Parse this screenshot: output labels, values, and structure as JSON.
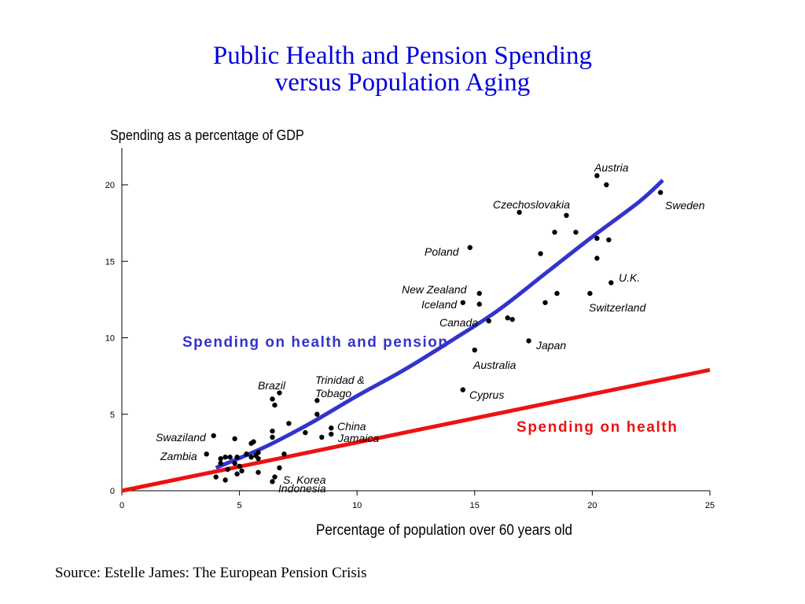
{
  "title_line1": "Public Health and Pension Spending",
  "title_line2": "versus Population Aging",
  "source": "Source: Estelle James: The European Pension Crisis",
  "chart_data": {
    "type": "scatter",
    "title": "Public Health and Pension Spending versus Population Aging",
    "xlabel": "Percentage of population over 60 years old",
    "ylabel": "Spending as a percentage of GDP",
    "xlim": [
      0,
      25
    ],
    "ylim": [
      0,
      21
    ],
    "xticks": [
      0,
      5,
      10,
      15,
      20,
      25
    ],
    "yticks": [
      0,
      5,
      10,
      15,
      20
    ],
    "grid": false,
    "points": [
      {
        "x": 20.2,
        "y": 20.6,
        "label": "Austria"
      },
      {
        "x": 20.6,
        "y": 20.0
      },
      {
        "x": 22.9,
        "y": 19.5,
        "label": "Sweden"
      },
      {
        "x": 16.9,
        "y": 18.2,
        "label": "Czechoslovakia"
      },
      {
        "x": 18.9,
        "y": 18.0
      },
      {
        "x": 18.4,
        "y": 16.9
      },
      {
        "x": 19.3,
        "y": 16.9
      },
      {
        "x": 20.2,
        "y": 16.5
      },
      {
        "x": 20.7,
        "y": 16.4
      },
      {
        "x": 14.8,
        "y": 15.9,
        "label": "Poland"
      },
      {
        "x": 17.8,
        "y": 15.5
      },
      {
        "x": 20.2,
        "y": 15.2
      },
      {
        "x": 20.8,
        "y": 13.6,
        "label": "U.K."
      },
      {
        "x": 15.2,
        "y": 12.9,
        "label": "New Zealand"
      },
      {
        "x": 18.5,
        "y": 12.9
      },
      {
        "x": 19.9,
        "y": 12.9,
        "label": "Switzerland"
      },
      {
        "x": 14.5,
        "y": 12.3,
        "label": "Iceland"
      },
      {
        "x": 15.2,
        "y": 12.2
      },
      {
        "x": 18.0,
        "y": 12.3
      },
      {
        "x": 15.6,
        "y": 11.1,
        "label": "Canada"
      },
      {
        "x": 16.4,
        "y": 11.3
      },
      {
        "x": 16.6,
        "y": 11.2
      },
      {
        "x": 17.3,
        "y": 9.8,
        "label": "Japan"
      },
      {
        "x": 15.0,
        "y": 9.2,
        "label": "Australia"
      },
      {
        "x": 14.5,
        "y": 6.6,
        "label": "Cyprus"
      },
      {
        "x": 6.7,
        "y": 6.4,
        "label": "Brazil"
      },
      {
        "x": 8.3,
        "y": 5.9,
        "label": "Trinidad & Tobago"
      },
      {
        "x": 6.4,
        "y": 6.0
      },
      {
        "x": 6.5,
        "y": 5.6
      },
      {
        "x": 8.3,
        "y": 5.0
      },
      {
        "x": 7.1,
        "y": 4.4
      },
      {
        "x": 8.9,
        "y": 4.1,
        "label": "China"
      },
      {
        "x": 8.9,
        "y": 3.7,
        "label": "Jamaica"
      },
      {
        "x": 6.4,
        "y": 3.9
      },
      {
        "x": 7.8,
        "y": 3.8
      },
      {
        "x": 8.5,
        "y": 3.5
      },
      {
        "x": 6.4,
        "y": 3.5
      },
      {
        "x": 3.9,
        "y": 3.6,
        "label": "Swaziland"
      },
      {
        "x": 4.8,
        "y": 3.4
      },
      {
        "x": 5.6,
        "y": 3.2
      },
      {
        "x": 5.5,
        "y": 3.1
      },
      {
        "x": 3.6,
        "y": 2.4,
        "label": "Zambia"
      },
      {
        "x": 4.2,
        "y": 2.1
      },
      {
        "x": 4.4,
        "y": 2.2
      },
      {
        "x": 4.6,
        "y": 2.2
      },
      {
        "x": 4.9,
        "y": 2.2
      },
      {
        "x": 5.3,
        "y": 2.4
      },
      {
        "x": 5.5,
        "y": 2.2
      },
      {
        "x": 5.7,
        "y": 2.3
      },
      {
        "x": 5.8,
        "y": 2.1
      },
      {
        "x": 5.8,
        "y": 2.5
      },
      {
        "x": 6.9,
        "y": 2.4
      },
      {
        "x": 4.2,
        "y": 1.8
      },
      {
        "x": 4.5,
        "y": 1.4
      },
      {
        "x": 4.8,
        "y": 1.8
      },
      {
        "x": 5.0,
        "y": 1.6
      },
      {
        "x": 5.1,
        "y": 1.3
      },
      {
        "x": 4.9,
        "y": 1.1
      },
      {
        "x": 5.8,
        "y": 1.2
      },
      {
        "x": 6.7,
        "y": 1.5
      },
      {
        "x": 4.0,
        "y": 0.9
      },
      {
        "x": 4.4,
        "y": 0.7
      },
      {
        "x": 6.5,
        "y": 0.9,
        "label": "S. Korea"
      },
      {
        "x": 6.4,
        "y": 0.6,
        "label": "Indonesia"
      }
    ],
    "series": [
      {
        "name": "Spending on health and pension",
        "type": "curve",
        "color": "#3333cc",
        "x": [
          4.0,
          6.0,
          8.0,
          10.0,
          12.0,
          14.0,
          16.0,
          18.0,
          20.0,
          22.0,
          23.0
        ],
        "values": [
          1.5,
          2.8,
          4.4,
          6.2,
          7.9,
          9.8,
          11.8,
          14.2,
          16.6,
          18.9,
          20.3
        ]
      },
      {
        "name": "Spending on health",
        "type": "line",
        "color": "#ee1111",
        "x": [
          0,
          25
        ],
        "values": [
          0,
          7.9
        ]
      }
    ]
  }
}
